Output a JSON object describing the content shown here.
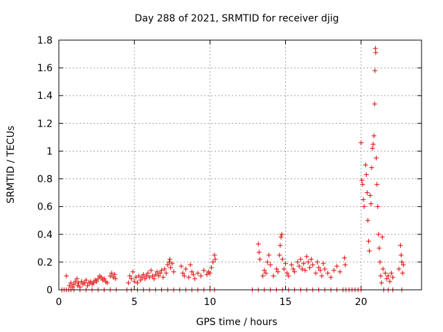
{
  "chart_data": {
    "type": "scatter",
    "title": "Day 288 of 2021, SRMTID for receiver djig",
    "xlabel": "GPS time / hours",
    "ylabel": "SRMTID / TECUs",
    "xlim": [
      0,
      24
    ],
    "ylim": [
      0,
      1.8
    ],
    "x_ticks": [
      0,
      5,
      10,
      15,
      20
    ],
    "x_tick_labels": [
      "0",
      "5",
      "10",
      "15",
      "20"
    ],
    "y_ticks": [
      0,
      0.2,
      0.4,
      0.6,
      0.8,
      1.0,
      1.2,
      1.4,
      1.6,
      1.8
    ],
    "y_tick_labels": [
      "0",
      "0.2",
      "0.4",
      "0.6",
      "0.8",
      "1",
      "1.2",
      "1.4",
      "1.6",
      "1.8"
    ],
    "grid": true,
    "marker": "+",
    "color": "#e00000",
    "series": [
      {
        "name": "SRMTID",
        "points": [
          [
            0.2,
            0.0
          ],
          [
            0.35,
            0.0
          ],
          [
            0.5,
            0.0
          ],
          [
            0.65,
            0.0
          ],
          [
            0.8,
            0.0
          ],
          [
            1.0,
            0.0
          ],
          [
            1.4,
            0.0
          ],
          [
            1.8,
            0.0
          ],
          [
            2.2,
            0.0
          ],
          [
            2.6,
            0.0
          ],
          [
            3.0,
            0.0
          ],
          [
            3.4,
            0.0
          ],
          [
            3.8,
            0.0
          ],
          [
            0.5,
            0.1
          ],
          [
            0.7,
            0.03
          ],
          [
            0.8,
            0.05
          ],
          [
            0.9,
            0.02
          ],
          [
            1.0,
            0.04
          ],
          [
            1.1,
            0.06
          ],
          [
            1.2,
            0.08
          ],
          [
            1.25,
            0.03
          ],
          [
            1.3,
            0.05
          ],
          [
            1.4,
            0.02
          ],
          [
            1.5,
            0.06
          ],
          [
            1.6,
            0.04
          ],
          [
            1.7,
            0.05
          ],
          [
            1.8,
            0.07
          ],
          [
            1.9,
            0.03
          ],
          [
            2.0,
            0.05
          ],
          [
            2.1,
            0.06
          ],
          [
            2.2,
            0.04
          ],
          [
            2.3,
            0.05
          ],
          [
            2.4,
            0.07
          ],
          [
            2.5,
            0.06
          ],
          [
            2.6,
            0.08
          ],
          [
            2.7,
            0.1
          ],
          [
            2.8,
            0.09
          ],
          [
            2.9,
            0.07
          ],
          [
            3.0,
            0.08
          ],
          [
            3.1,
            0.06
          ],
          [
            3.2,
            0.05
          ],
          [
            3.4,
            0.1
          ],
          [
            3.5,
            0.12
          ],
          [
            3.6,
            0.09
          ],
          [
            3.7,
            0.11
          ],
          [
            3.75,
            0.08
          ],
          [
            4.5,
            0.0
          ],
          [
            4.8,
            0.0
          ],
          [
            5.2,
            0.0
          ],
          [
            5.6,
            0.0
          ],
          [
            6.0,
            0.0
          ],
          [
            6.4,
            0.0
          ],
          [
            6.8,
            0.0
          ],
          [
            7.2,
            0.0
          ],
          [
            7.6,
            0.0
          ],
          [
            8.0,
            0.0
          ],
          [
            8.4,
            0.0
          ],
          [
            8.8,
            0.0
          ],
          [
            9.2,
            0.0
          ],
          [
            9.6,
            0.0
          ],
          [
            10.0,
            0.0
          ],
          [
            10.3,
            0.0
          ],
          [
            4.6,
            0.05
          ],
          [
            4.7,
            0.1
          ],
          [
            4.8,
            0.08
          ],
          [
            4.9,
            0.13
          ],
          [
            5.0,
            0.06
          ],
          [
            5.1,
            0.09
          ],
          [
            5.2,
            0.05
          ],
          [
            5.3,
            0.1
          ],
          [
            5.4,
            0.07
          ],
          [
            5.5,
            0.09
          ],
          [
            5.6,
            0.11
          ],
          [
            5.7,
            0.08
          ],
          [
            5.8,
            0.1
          ],
          [
            5.9,
            0.12
          ],
          [
            6.0,
            0.09
          ],
          [
            6.1,
            0.14
          ],
          [
            6.2,
            0.1
          ],
          [
            6.3,
            0.08
          ],
          [
            6.4,
            0.11
          ],
          [
            6.5,
            0.13
          ],
          [
            6.6,
            0.1
          ],
          [
            6.7,
            0.12
          ],
          [
            6.8,
            0.14
          ],
          [
            6.9,
            0.09
          ],
          [
            7.0,
            0.15
          ],
          [
            7.1,
            0.12
          ],
          [
            7.2,
            0.18
          ],
          [
            7.3,
            0.2
          ],
          [
            7.35,
            0.22
          ],
          [
            7.4,
            0.16
          ],
          [
            7.5,
            0.19
          ],
          [
            7.6,
            0.13
          ],
          [
            8.1,
            0.17
          ],
          [
            8.2,
            0.12
          ],
          [
            8.3,
            0.1
          ],
          [
            8.4,
            0.15
          ],
          [
            8.6,
            0.09
          ],
          [
            8.7,
            0.18
          ],
          [
            8.8,
            0.13
          ],
          [
            8.9,
            0.11
          ],
          [
            9.0,
            0.08
          ],
          [
            9.2,
            0.12
          ],
          [
            9.4,
            0.1
          ],
          [
            9.6,
            0.14
          ],
          [
            9.8,
            0.11
          ],
          [
            9.9,
            0.13
          ],
          [
            10.0,
            0.12
          ],
          [
            10.1,
            0.16
          ],
          [
            10.2,
            0.2
          ],
          [
            10.3,
            0.25
          ],
          [
            10.35,
            0.22
          ],
          [
            12.8,
            0.0
          ],
          [
            13.2,
            0.0
          ],
          [
            13.6,
            0.0
          ],
          [
            14.0,
            0.0
          ],
          [
            14.4,
            0.0
          ],
          [
            14.8,
            0.0
          ],
          [
            15.2,
            0.0
          ],
          [
            15.6,
            0.0
          ],
          [
            16.0,
            0.0
          ],
          [
            16.4,
            0.0
          ],
          [
            16.8,
            0.0
          ],
          [
            17.2,
            0.0
          ],
          [
            17.6,
            0.0
          ],
          [
            18.0,
            0.0
          ],
          [
            18.4,
            0.0
          ],
          [
            18.8,
            0.0
          ],
          [
            13.2,
            0.33
          ],
          [
            13.25,
            0.27
          ],
          [
            13.3,
            0.22
          ],
          [
            13.5,
            0.1
          ],
          [
            13.6,
            0.14
          ],
          [
            13.7,
            0.12
          ],
          [
            13.8,
            0.2
          ],
          [
            13.9,
            0.25
          ],
          [
            14.0,
            0.18
          ],
          [
            14.2,
            0.1
          ],
          [
            14.4,
            0.15
          ],
          [
            14.5,
            0.13
          ],
          [
            14.6,
            0.25
          ],
          [
            14.65,
            0.32
          ],
          [
            14.7,
            0.38
          ],
          [
            14.75,
            0.4
          ],
          [
            14.8,
            0.22
          ],
          [
            14.9,
            0.15
          ],
          [
            15.0,
            0.19
          ],
          [
            15.1,
            0.12
          ],
          [
            15.2,
            0.1
          ],
          [
            15.4,
            0.18
          ],
          [
            15.5,
            0.15
          ],
          [
            15.6,
            0.13
          ],
          [
            15.8,
            0.2
          ],
          [
            15.9,
            0.17
          ],
          [
            16.0,
            0.22
          ],
          [
            16.1,
            0.15
          ],
          [
            16.2,
            0.19
          ],
          [
            16.3,
            0.14
          ],
          [
            16.4,
            0.24
          ],
          [
            16.5,
            0.2
          ],
          [
            16.6,
            0.16
          ],
          [
            16.7,
            0.22
          ],
          [
            16.8,
            0.18
          ],
          [
            17.0,
            0.12
          ],
          [
            17.1,
            0.2
          ],
          [
            17.2,
            0.16
          ],
          [
            17.3,
            0.14
          ],
          [
            17.4,
            0.1
          ],
          [
            17.5,
            0.19
          ],
          [
            17.6,
            0.15
          ],
          [
            17.8,
            0.12
          ],
          [
            18.0,
            0.09
          ],
          [
            18.2,
            0.14
          ],
          [
            18.4,
            0.17
          ],
          [
            18.6,
            0.13
          ],
          [
            18.9,
            0.23
          ],
          [
            18.95,
            0.18
          ],
          [
            19.0,
            0.0
          ],
          [
            19.2,
            0.0
          ],
          [
            19.4,
            0.0
          ],
          [
            19.6,
            0.0
          ],
          [
            19.8,
            0.0
          ],
          [
            20.0,
            0.0
          ],
          [
            20.0,
            1.06
          ],
          [
            20.05,
            0.79
          ],
          [
            20.1,
            0.76
          ],
          [
            20.15,
            0.65
          ],
          [
            20.2,
            0.6
          ],
          [
            20.3,
            0.9
          ],
          [
            20.35,
            0.83
          ],
          [
            20.4,
            0.7
          ],
          [
            20.45,
            0.5
          ],
          [
            20.5,
            0.35
          ],
          [
            20.55,
            0.28
          ],
          [
            20.6,
            0.68
          ],
          [
            20.65,
            0.62
          ],
          [
            20.7,
            0.88
          ],
          [
            20.75,
            1.02
          ],
          [
            20.8,
            1.05
          ],
          [
            20.85,
            1.11
          ],
          [
            20.9,
            1.34
          ],
          [
            20.92,
            1.58
          ],
          [
            20.95,
            1.74
          ],
          [
            20.97,
            1.71
          ],
          [
            21.0,
            0.95
          ],
          [
            21.05,
            0.76
          ],
          [
            21.1,
            0.6
          ],
          [
            21.15,
            0.4
          ],
          [
            21.2,
            0.3
          ],
          [
            21.25,
            0.2
          ],
          [
            21.3,
            0.1
          ],
          [
            21.35,
            0.05
          ],
          [
            21.4,
            0.38
          ],
          [
            21.45,
            0.15
          ],
          [
            21.6,
            0.12
          ],
          [
            21.7,
            0.08
          ],
          [
            21.8,
            0.1
          ],
          [
            21.9,
            0.06
          ],
          [
            22.0,
            0.12
          ],
          [
            22.1,
            0.09
          ],
          [
            22.5,
            0.15
          ],
          [
            22.6,
            0.32
          ],
          [
            22.65,
            0.25
          ],
          [
            22.7,
            0.2
          ],
          [
            22.75,
            0.12
          ],
          [
            22.8,
            0.18
          ],
          [
            21.5,
            0.0
          ],
          [
            21.8,
            0.0
          ],
          [
            22.1,
            0.0
          ],
          [
            22.7,
            0.0
          ]
        ]
      }
    ]
  }
}
